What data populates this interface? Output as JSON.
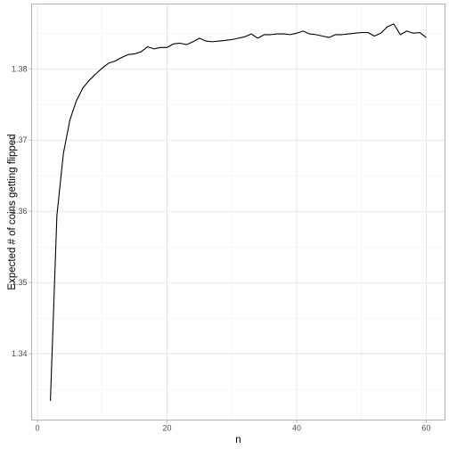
{
  "chart_data": {
    "type": "line",
    "x_label": "n",
    "y_label": "Expected # of coins getting flipped",
    "x": [
      2,
      3,
      4,
      5,
      6,
      7,
      8,
      9,
      10,
      11,
      12,
      13,
      14,
      15,
      16,
      17,
      18,
      19,
      20,
      21,
      22,
      23,
      24,
      25,
      26,
      27,
      28,
      29,
      30,
      31,
      32,
      33,
      34,
      35,
      36,
      37,
      38,
      39,
      40,
      41,
      42,
      43,
      44,
      45,
      46,
      47,
      48,
      49,
      50,
      51,
      52,
      53,
      54,
      55,
      56,
      57,
      58,
      59,
      60
    ],
    "series": [
      {
        "color": "#000000",
        "values": [
          1.3334,
          1.3594,
          1.3681,
          1.3728,
          1.3755,
          1.3773,
          1.3784,
          1.3793,
          1.3801,
          1.3808,
          1.3811,
          1.3816,
          1.382,
          1.3821,
          1.3824,
          1.3831,
          1.3828,
          1.383,
          1.383,
          1.3835,
          1.3836,
          1.3834,
          1.3838,
          1.3843,
          1.3839,
          1.3838,
          1.3839,
          1.384,
          1.3841,
          1.3843,
          1.3845,
          1.3849,
          1.3843,
          1.3848,
          1.3848,
          1.3849,
          1.3849,
          1.3848,
          1.385,
          1.3853,
          1.3849,
          1.3848,
          1.3846,
          1.3844,
          1.3848,
          1.3848,
          1.3849,
          1.385,
          1.3851,
          1.3851,
          1.3846,
          1.385,
          1.3859,
          1.3863,
          1.3848,
          1.3853,
          1.385,
          1.3851,
          1.3844
        ]
      }
    ],
    "xlim": [
      -0.9,
      62.9
    ],
    "ylim": [
      1.3307,
      1.3891
    ],
    "xticks": [
      0,
      20,
      40,
      60
    ],
    "yticks": [
      1.34,
      1.35,
      1.36,
      1.37,
      1.38
    ],
    "xminorticks": [
      10,
      30,
      50
    ],
    "yminorticks": [
      1.335,
      1.345,
      1.355,
      1.365,
      1.375,
      1.385
    ],
    "grid": true
  }
}
